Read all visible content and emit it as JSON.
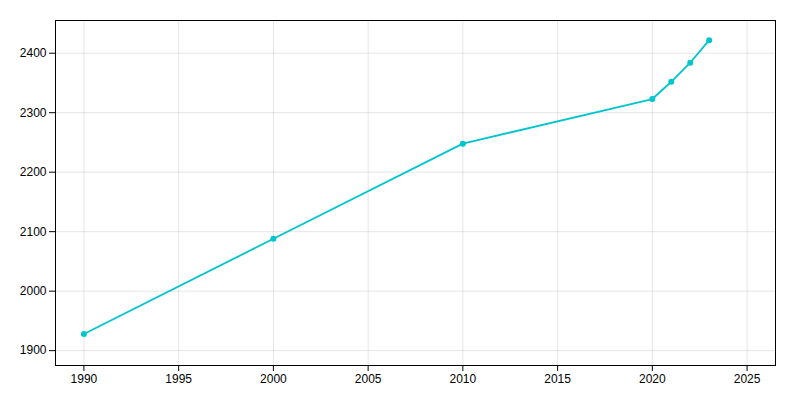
{
  "chart_data": {
    "type": "line",
    "x": [
      1990,
      2000,
      2010,
      2020,
      2021,
      2022,
      2023
    ],
    "values": [
      1928,
      2088,
      2248,
      2323,
      2352,
      2384,
      2422
    ],
    "color": "#00c5cd",
    "marker": "circle",
    "xlim": [
      1988.5,
      2026.5
    ],
    "ylim": [
      1875,
      2455
    ],
    "xticks": [
      1990,
      1995,
      2000,
      2005,
      2010,
      2015,
      2020,
      2025
    ],
    "yticks": [
      1900,
      2000,
      2100,
      2200,
      2300,
      2400
    ],
    "grid": true
  }
}
